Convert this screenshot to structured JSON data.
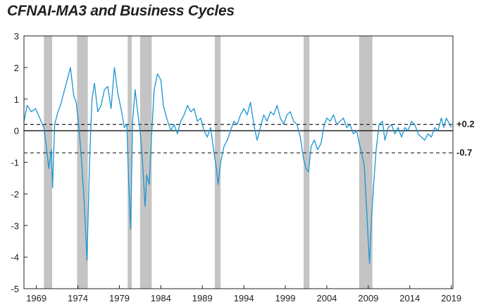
{
  "chart_data": {
    "type": "line",
    "title": "CFNAI-MA3 and Business Cycles",
    "xlabel": "",
    "ylabel": "",
    "xlim": [
      1967.5,
      2019.2
    ],
    "ylim": [
      -5,
      3
    ],
    "yticks": [
      "3",
      "2",
      "1",
      "0",
      "-1",
      "-2",
      "-3",
      "-4",
      "-5"
    ],
    "xticks": [
      "1969",
      "1974",
      "1979",
      "1984",
      "1989",
      "1994",
      "1999",
      "2004",
      "2009",
      "2014",
      "2019"
    ],
    "grid": false,
    "legend": "none",
    "line_color": "#1b95d2",
    "recession_color": "#c4c4c4",
    "reference_lines": [
      {
        "value": 0.2,
        "label": "+0.2",
        "style": "dashed"
      },
      {
        "value": 0,
        "label": "",
        "style": "solid"
      },
      {
        "value": -0.7,
        "label": "-0.7",
        "style": "dashed"
      }
    ],
    "recessions": [
      [
        1969.9,
        1970.9
      ],
      [
        1973.9,
        1975.2
      ],
      [
        1980.0,
        1980.5
      ],
      [
        1981.5,
        1982.9
      ],
      [
        1990.5,
        1991.2
      ],
      [
        2001.2,
        2001.9
      ],
      [
        2007.9,
        2009.5
      ]
    ],
    "series": [
      {
        "values": [
          [
            1967.5,
            0.3
          ],
          [
            1967.9,
            0.8
          ],
          [
            1968.4,
            0.6
          ],
          [
            1968.9,
            0.7
          ],
          [
            1969.4,
            0.4
          ],
          [
            1969.9,
            0.1
          ],
          [
            1970.2,
            -0.5
          ],
          [
            1970.5,
            -1.2
          ],
          [
            1970.8,
            -0.6
          ],
          [
            1970.95,
            -1.8
          ],
          [
            1971.2,
            0.2
          ],
          [
            1971.6,
            0.6
          ],
          [
            1971.9,
            0.8
          ],
          [
            1972.3,
            1.2
          ],
          [
            1972.7,
            1.6
          ],
          [
            1973.1,
            2.0
          ],
          [
            1973.5,
            1.1
          ],
          [
            1973.8,
            0.9
          ],
          [
            1974.1,
            0.2
          ],
          [
            1974.4,
            -0.8
          ],
          [
            1974.7,
            -2.0
          ],
          [
            1974.9,
            -3.0
          ],
          [
            1975.1,
            -4.1
          ],
          [
            1975.4,
            -1.0
          ],
          [
            1975.7,
            1.0
          ],
          [
            1976.0,
            1.5
          ],
          [
            1976.4,
            0.6
          ],
          [
            1976.8,
            0.8
          ],
          [
            1977.2,
            1.3
          ],
          [
            1977.6,
            1.4
          ],
          [
            1978.0,
            0.7
          ],
          [
            1978.4,
            2.0
          ],
          [
            1978.8,
            1.2
          ],
          [
            1979.2,
            0.7
          ],
          [
            1979.6,
            0.1
          ],
          [
            1979.9,
            0.2
          ],
          [
            1980.1,
            -1.5
          ],
          [
            1980.35,
            -3.1
          ],
          [
            1980.6,
            0.3
          ],
          [
            1980.9,
            1.3
          ],
          [
            1981.2,
            0.6
          ],
          [
            1981.5,
            0.0
          ],
          [
            1981.8,
            -1.0
          ],
          [
            1982.1,
            -2.4
          ],
          [
            1982.3,
            -1.4
          ],
          [
            1982.6,
            -1.7
          ],
          [
            1982.85,
            -0.3
          ],
          [
            1983.2,
            1.3
          ],
          [
            1983.6,
            1.8
          ],
          [
            1984.0,
            1.6
          ],
          [
            1984.3,
            0.8
          ],
          [
            1984.7,
            0.4
          ],
          [
            1985.2,
            0.0
          ],
          [
            1985.6,
            0.2
          ],
          [
            1986.0,
            -0.1
          ],
          [
            1986.4,
            0.3
          ],
          [
            1986.8,
            0.5
          ],
          [
            1987.2,
            0.8
          ],
          [
            1987.6,
            0.6
          ],
          [
            1988.0,
            0.7
          ],
          [
            1988.4,
            0.3
          ],
          [
            1988.8,
            0.4
          ],
          [
            1989.2,
            0.0
          ],
          [
            1989.6,
            -0.2
          ],
          [
            1990.0,
            0.1
          ],
          [
            1990.4,
            -0.7
          ],
          [
            1990.7,
            -1.2
          ],
          [
            1990.9,
            -1.7
          ],
          [
            1991.2,
            -1.0
          ],
          [
            1991.6,
            -0.5
          ],
          [
            1992.0,
            -0.3
          ],
          [
            1992.4,
            0.0
          ],
          [
            1992.8,
            0.3
          ],
          [
            1993.2,
            0.2
          ],
          [
            1993.6,
            0.5
          ],
          [
            1994.0,
            0.7
          ],
          [
            1994.4,
            0.5
          ],
          [
            1994.8,
            0.9
          ],
          [
            1995.2,
            0.2
          ],
          [
            1995.6,
            -0.3
          ],
          [
            1996.0,
            0.1
          ],
          [
            1996.4,
            0.5
          ],
          [
            1996.8,
            0.3
          ],
          [
            1997.2,
            0.6
          ],
          [
            1997.6,
            0.5
          ],
          [
            1998.0,
            0.8
          ],
          [
            1998.4,
            0.4
          ],
          [
            1998.8,
            0.2
          ],
          [
            1999.2,
            0.5
          ],
          [
            1999.6,
            0.6
          ],
          [
            2000.0,
            0.3
          ],
          [
            2000.4,
            0.2
          ],
          [
            2000.8,
            -0.2
          ],
          [
            2001.2,
            -0.9
          ],
          [
            2001.5,
            -1.2
          ],
          [
            2001.8,
            -1.3
          ],
          [
            2002.1,
            -0.5
          ],
          [
            2002.5,
            -0.3
          ],
          [
            2002.9,
            -0.6
          ],
          [
            2003.3,
            -0.4
          ],
          [
            2003.7,
            0.2
          ],
          [
            2004.0,
            0.4
          ],
          [
            2004.4,
            0.3
          ],
          [
            2004.8,
            0.5
          ],
          [
            2005.2,
            0.2
          ],
          [
            2005.6,
            0.3
          ],
          [
            2006.0,
            0.4
          ],
          [
            2006.4,
            0.1
          ],
          [
            2006.8,
            0.2
          ],
          [
            2007.2,
            -0.1
          ],
          [
            2007.6,
            0.0
          ],
          [
            2007.9,
            -0.4
          ],
          [
            2008.2,
            -0.7
          ],
          [
            2008.5,
            -1.1
          ],
          [
            2008.8,
            -2.5
          ],
          [
            2009.0,
            -3.5
          ],
          [
            2009.15,
            -4.2
          ],
          [
            2009.4,
            -2.7
          ],
          [
            2009.7,
            -1.5
          ],
          [
            2009.95,
            -0.6
          ],
          [
            2010.3,
            0.2
          ],
          [
            2010.7,
            0.3
          ],
          [
            2011.0,
            -0.3
          ],
          [
            2011.4,
            0.1
          ],
          [
            2011.8,
            0.2
          ],
          [
            2012.2,
            -0.1
          ],
          [
            2012.6,
            0.1
          ],
          [
            2013.0,
            -0.2
          ],
          [
            2013.4,
            0.1
          ],
          [
            2013.8,
            0.0
          ],
          [
            2014.2,
            0.3
          ],
          [
            2014.6,
            0.2
          ],
          [
            2015.0,
            -0.1
          ],
          [
            2015.4,
            -0.2
          ],
          [
            2015.8,
            -0.3
          ],
          [
            2016.2,
            -0.1
          ],
          [
            2016.6,
            -0.2
          ],
          [
            2017.0,
            0.1
          ],
          [
            2017.4,
            0.0
          ],
          [
            2017.8,
            0.4
          ],
          [
            2018.1,
            0.1
          ],
          [
            2018.4,
            0.4
          ],
          [
            2018.8,
            0.2
          ],
          [
            2019.0,
            0.1
          ]
        ]
      }
    ]
  }
}
